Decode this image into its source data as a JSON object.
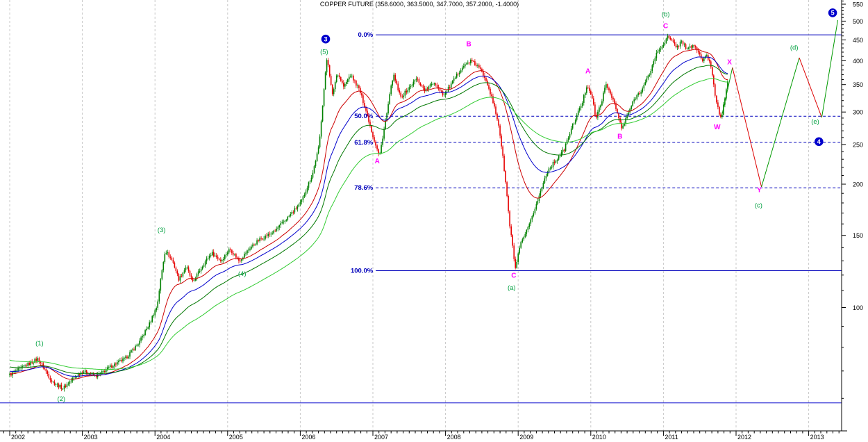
{
  "title": "COPPER FUTURE (358.6000, 363.5000, 347.7000, 357.2000, -1.4000)",
  "chart_data": {
    "type": "candlestick",
    "instrument": "COPPER FUTURE",
    "last_quote": {
      "open": 358.6,
      "high": 363.5,
      "low": 347.7,
      "close": 357.2,
      "change": -1.4
    },
    "x_axis": {
      "years": [
        2002,
        2003,
        2004,
        2005,
        2006,
        2007,
        2008,
        2009,
        2010,
        2011,
        2012,
        2013
      ],
      "minor_ticks_per_year": 12
    },
    "y_axis": {
      "scale": "log",
      "ticks": [
        550,
        500,
        450,
        400,
        350,
        300,
        250,
        200,
        150,
        100
      ],
      "minor_step": 10
    },
    "x_domain": [
      2001.866,
      2013.453
    ],
    "y_domain": [
      50,
      563
    ],
    "grid": {
      "vertical_year_lines": true,
      "horizontal_lines": false
    },
    "price_path": [
      [
        2002.0,
        68.5
      ],
      [
        2002.39,
        75
      ],
      [
        2002.58,
        66
      ],
      [
        2002.73,
        63.5
      ],
      [
        2002.87,
        67
      ],
      [
        2003.0,
        70
      ],
      [
        2003.2,
        68
      ],
      [
        2003.4,
        72
      ],
      [
        2003.59,
        75
      ],
      [
        2003.78,
        82
      ],
      [
        2003.92,
        91
      ],
      [
        2004.03,
        101
      ],
      [
        2004.14,
        138
      ],
      [
        2004.24,
        130
      ],
      [
        2004.33,
        117
      ],
      [
        2004.43,
        126
      ],
      [
        2004.52,
        115
      ],
      [
        2004.66,
        127
      ],
      [
        2004.78,
        136
      ],
      [
        2004.91,
        130
      ],
      [
        2005.03,
        139
      ],
      [
        2005.16,
        130
      ],
      [
        2005.31,
        140
      ],
      [
        2005.45,
        147
      ],
      [
        2005.64,
        153
      ],
      [
        2005.83,
        166
      ],
      [
        2006.01,
        180
      ],
      [
        2006.17,
        212
      ],
      [
        2006.26,
        248
      ],
      [
        2006.32,
        330
      ],
      [
        2006.37,
        410
      ],
      [
        2006.44,
        328
      ],
      [
        2006.51,
        375
      ],
      [
        2006.6,
        345
      ],
      [
        2006.69,
        370
      ],
      [
        2006.81,
        341
      ],
      [
        2006.91,
        300
      ],
      [
        2007.0,
        262
      ],
      [
        2007.09,
        233
      ],
      [
        2007.19,
        295
      ],
      [
        2007.28,
        370
      ],
      [
        2007.38,
        325
      ],
      [
        2007.51,
        345
      ],
      [
        2007.6,
        362
      ],
      [
        2007.72,
        338
      ],
      [
        2007.84,
        355
      ],
      [
        2007.98,
        330
      ],
      [
        2008.1,
        355
      ],
      [
        2008.22,
        385
      ],
      [
        2008.35,
        400
      ],
      [
        2008.46,
        385
      ],
      [
        2008.56,
        360
      ],
      [
        2008.65,
        318
      ],
      [
        2008.73,
        280
      ],
      [
        2008.81,
        215
      ],
      [
        2008.88,
        160
      ],
      [
        2008.96,
        124
      ],
      [
        2009.03,
        142
      ],
      [
        2009.15,
        158
      ],
      [
        2009.28,
        185
      ],
      [
        2009.4,
        215
      ],
      [
        2009.51,
        228
      ],
      [
        2009.63,
        242
      ],
      [
        2009.75,
        278
      ],
      [
        2009.88,
        315
      ],
      [
        2009.95,
        350
      ],
      [
        2010.01,
        330
      ],
      [
        2010.07,
        288
      ],
      [
        2010.15,
        320
      ],
      [
        2010.21,
        350
      ],
      [
        2010.3,
        325
      ],
      [
        2010.37,
        295
      ],
      [
        2010.43,
        272
      ],
      [
        2010.52,
        300
      ],
      [
        2010.61,
        325
      ],
      [
        2010.71,
        342
      ],
      [
        2010.81,
        372
      ],
      [
        2010.9,
        415
      ],
      [
        2011.0,
        440
      ],
      [
        2011.06,
        458
      ],
      [
        2011.12,
        445
      ],
      [
        2011.19,
        432
      ],
      [
        2011.25,
        448
      ],
      [
        2011.33,
        425
      ],
      [
        2011.41,
        438
      ],
      [
        2011.48,
        420
      ],
      [
        2011.54,
        400
      ],
      [
        2011.6,
        412
      ],
      [
        2011.66,
        385
      ],
      [
        2011.71,
        330
      ],
      [
        2011.77,
        298
      ],
      [
        2011.8,
        292
      ],
      [
        2011.84,
        320
      ],
      [
        2011.89,
        357
      ]
    ],
    "candles": {
      "interval": "weekly",
      "noise": 0.02,
      "wick": 0.012,
      "base_wick": 0.004
    },
    "fib_levels": [
      {
        "label": "0.0%",
        "value": 463,
        "dash": false
      },
      {
        "label": "50.0%",
        "value": 293,
        "dash": true
      },
      {
        "label": "61.8%",
        "value": 253,
        "dash": true
      },
      {
        "label": "78.6%",
        "value": 196,
        "dash": true
      },
      {
        "label": "100.0%",
        "value": 123,
        "dash": false
      }
    ],
    "fib_start_year": 2007.04,
    "support_line": {
      "value": 58.5
    },
    "moving_averages": [
      {
        "name": "ema-fast",
        "color": "#CC0000",
        "period": 26,
        "init_factor": 1.0
      },
      {
        "name": "ema-medium",
        "color": "#0000CC",
        "period": 45,
        "init_factor": 1.015
      },
      {
        "name": "ema-slow",
        "color": "#007700",
        "period": 70,
        "init_factor": 1.04
      },
      {
        "name": "ema-slowest",
        "color": "#33CC33",
        "period": 120,
        "init_factor": 1.08
      }
    ],
    "projection_segments": [
      {
        "trend": "up",
        "points": [
          [
            2011.8,
            292
          ],
          [
            2011.95,
            385
          ]
        ]
      },
      {
        "trend": "down",
        "points": [
          [
            2011.95,
            385
          ],
          [
            2012.35,
            197
          ]
        ]
      },
      {
        "trend": "up",
        "points": [
          [
            2012.35,
            197
          ],
          [
            2012.87,
            407
          ]
        ]
      },
      {
        "trend": "down",
        "points": [
          [
            2012.87,
            407
          ],
          [
            2013.18,
            291
          ]
        ]
      },
      {
        "trend": "up",
        "points": [
          [
            2013.18,
            291
          ],
          [
            2013.4,
            503
          ]
        ]
      }
    ],
    "wave_labels": [
      {
        "text": "(1)",
        "style": "green",
        "year": 2002.41,
        "price": 82
      },
      {
        "text": "(2)",
        "style": "green",
        "year": 2002.71,
        "price": 60
      },
      {
        "text": "(3)",
        "style": "green",
        "year": 2004.09,
        "price": 155
      },
      {
        "text": "(4)",
        "style": "green",
        "year": 2005.2,
        "price": 121
      },
      {
        "text": "(5)",
        "style": "green",
        "year": 2006.33,
        "price": 422
      },
      {
        "text": "3",
        "style": "circle",
        "year": 2006.35,
        "price": 452
      },
      {
        "text": "A",
        "style": "magenta",
        "year": 2007.06,
        "price": 228
      },
      {
        "text": "B",
        "style": "magenta",
        "year": 2008.32,
        "price": 440
      },
      {
        "text": "C",
        "style": "magenta",
        "year": 2008.94,
        "price": 120
      },
      {
        "text": "(a)",
        "style": "green",
        "year": 2008.91,
        "price": 112
      },
      {
        "text": "A",
        "style": "magenta",
        "year": 2009.96,
        "price": 378
      },
      {
        "text": "B",
        "style": "magenta",
        "year": 2010.4,
        "price": 262
      },
      {
        "text": "(b)",
        "style": "green",
        "year": 2011.03,
        "price": 521
      },
      {
        "text": "C",
        "style": "magenta",
        "year": 2011.03,
        "price": 487
      },
      {
        "text": "W",
        "style": "magenta",
        "year": 2011.74,
        "price": 276
      },
      {
        "text": "X",
        "style": "magenta",
        "year": 2011.91,
        "price": 398
      },
      {
        "text": "Y",
        "style": "magenta",
        "year": 2012.32,
        "price": 194
      },
      {
        "text": "(c)",
        "style": "green",
        "year": 2012.31,
        "price": 178
      },
      {
        "text": "(d)",
        "style": "green",
        "year": 2012.8,
        "price": 432
      },
      {
        "text": "(e)",
        "style": "green",
        "year": 2013.09,
        "price": 285
      },
      {
        "text": "4",
        "style": "circle",
        "year": 2013.14,
        "price": 254
      },
      {
        "text": "5",
        "style": "circle",
        "year": 2013.33,
        "price": 524
      }
    ],
    "colors": {
      "candle_up": "#008000",
      "candle_down": "#E60000",
      "fib": "#0000BB",
      "support": "#0000CC",
      "grid": "#C8C8C8",
      "axis": "#000000",
      "projection_up": "#009900",
      "projection_down": "#DD0000",
      "wave_green": "#00A040",
      "wave_magenta": "#FF00FF",
      "wave_circle_fill": "#0000CC",
      "wave_circle_text": "#FFFFFF"
    }
  }
}
